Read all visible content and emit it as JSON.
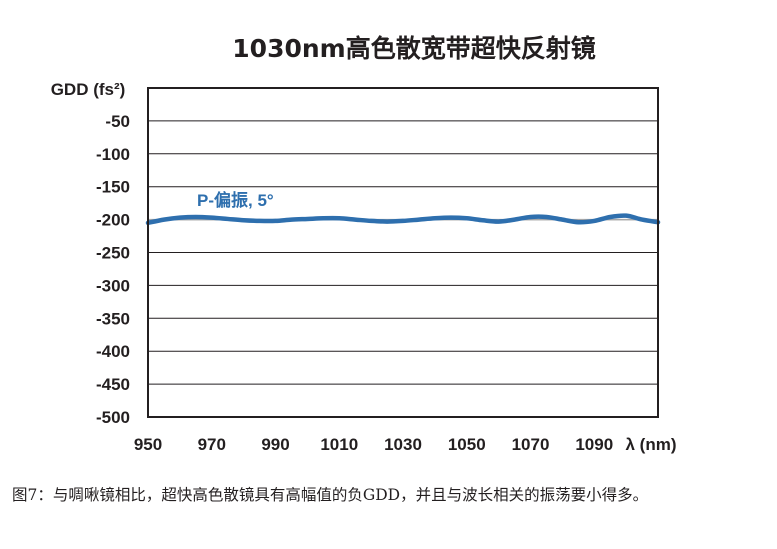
{
  "chart_data": {
    "type": "line",
    "title": "1030nm高色散宽带超快反射镜",
    "ylabel": "GDD (fs²)",
    "xlabel": "λ (nm)",
    "xlim": [
      950,
      1110
    ],
    "ylim": [
      -500,
      0
    ],
    "x_ticks": [
      950,
      970,
      990,
      1010,
      1030,
      1050,
      1070,
      1090
    ],
    "y_ticks": [
      -50,
      -100,
      -150,
      -200,
      -250,
      -300,
      -350,
      -400,
      -450,
      -500
    ],
    "grid": true,
    "series": [
      {
        "name": "P-偏振, 5°",
        "color": "#2e6fae",
        "x": [
          950,
          955,
          960,
          965,
          970,
          975,
          980,
          985,
          990,
          995,
          1000,
          1005,
          1010,
          1015,
          1020,
          1025,
          1030,
          1035,
          1040,
          1045,
          1050,
          1055,
          1060,
          1065,
          1070,
          1075,
          1080,
          1085,
          1090,
          1095,
          1100,
          1105,
          1110
        ],
        "y": [
          -205,
          -200,
          -197,
          -196,
          -197,
          -199,
          -201,
          -202,
          -202,
          -200,
          -199,
          -198,
          -198,
          -200,
          -202,
          -203,
          -202,
          -200,
          -198,
          -197,
          -198,
          -201,
          -203,
          -200,
          -196,
          -196,
          -200,
          -204,
          -202,
          -196,
          -194,
          -200,
          -204
        ]
      },
      {
        "name": "",
        "color": "#a8a8a8",
        "x": [
          950,
          1110
        ],
        "y": [
          -200,
          -200
        ]
      }
    ]
  },
  "caption": "图7：与啁啾镜相比，超快高色散镜具有高幅值的负GDD，并且与波长相关的振荡要小得多。"
}
